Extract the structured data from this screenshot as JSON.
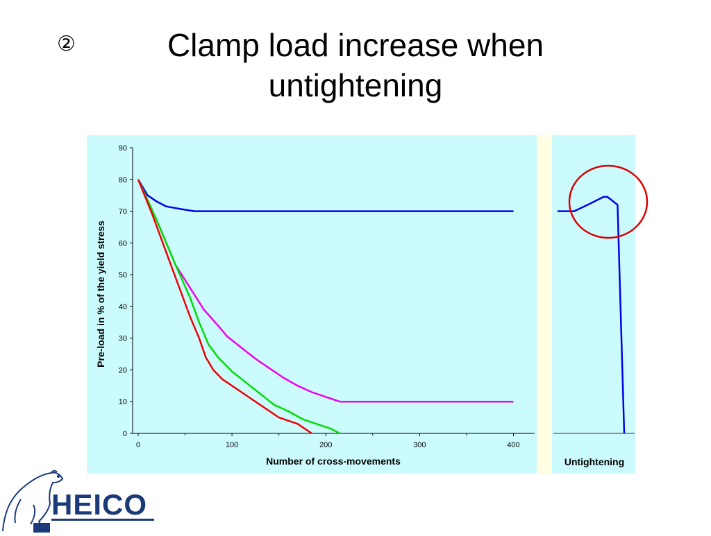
{
  "slide": {
    "number_glyph": "②",
    "title_line1": "Clamp load increase when",
    "title_line2": "untightening"
  },
  "logo": {
    "text": "HEICO",
    "icon": "polar-bear-icon",
    "color": "#1a3a7a"
  },
  "colors": {
    "background": "#ccfbfe",
    "separator": "#fffde2",
    "blue": "#0000ee",
    "magenta": "#ee00ee",
    "green": "#00dd00",
    "red": "#ee0000",
    "circle": "#dd0000"
  },
  "chart_data": [
    {
      "type": "line",
      "xlabel": "Number of cross-movements",
      "ylabel": "Pre-load in % of the yield stress",
      "xlim": [
        0,
        410
      ],
      "ylim": [
        0,
        90
      ],
      "xticks": [
        0,
        100,
        200,
        300,
        400
      ],
      "yticks": [
        0,
        10,
        20,
        30,
        40,
        50,
        60,
        70,
        80,
        90
      ],
      "grid": false,
      "series": [
        {
          "color": "blue",
          "points": [
            [
              0,
              80
            ],
            [
              10,
              75
            ],
            [
              20,
              73
            ],
            [
              30,
              71.5
            ],
            [
              45,
              70.7
            ],
            [
              60,
              70
            ],
            [
              150,
              70
            ],
            [
              250,
              70
            ],
            [
              400,
              70
            ]
          ]
        },
        {
          "color": "magenta",
          "points": [
            [
              0,
              80
            ],
            [
              20,
              67
            ],
            [
              40,
              53
            ],
            [
              55,
              46
            ],
            [
              70,
              39
            ],
            [
              85,
              34
            ],
            [
              95,
              30.5
            ],
            [
              110,
              27
            ],
            [
              125,
              23.5
            ],
            [
              140,
              20.5
            ],
            [
              155,
              17.5
            ],
            [
              170,
              15
            ],
            [
              185,
              13
            ],
            [
              200,
              11.5
            ],
            [
              215,
              10
            ],
            [
              300,
              10
            ],
            [
              400,
              10
            ]
          ]
        },
        {
          "color": "green",
          "points": [
            [
              0,
              80
            ],
            [
              20,
              67
            ],
            [
              40,
              53
            ],
            [
              55,
              43
            ],
            [
              65,
              35
            ],
            [
              75,
              28
            ],
            [
              85,
              24
            ],
            [
              100,
              19.5
            ],
            [
              115,
              16
            ],
            [
              130,
              12.5
            ],
            [
              145,
              9
            ],
            [
              160,
              7
            ],
            [
              175,
              4.5
            ],
            [
              190,
              3
            ],
            [
              205,
              1.5
            ],
            [
              215,
              0
            ]
          ]
        },
        {
          "color": "red",
          "points": [
            [
              0,
              80
            ],
            [
              15,
              69
            ],
            [
              30,
              57
            ],
            [
              45,
              45
            ],
            [
              55,
              37
            ],
            [
              65,
              30
            ],
            [
              72,
              24
            ],
            [
              80,
              20
            ],
            [
              90,
              17
            ],
            [
              105,
              14
            ],
            [
              120,
              11
            ],
            [
              135,
              8
            ],
            [
              150,
              5
            ],
            [
              170,
              3
            ],
            [
              185,
              0
            ]
          ]
        }
      ]
    },
    {
      "type": "line",
      "xlabel": "Untightening",
      "ylim": [
        0,
        90
      ],
      "series": [
        {
          "color": "blue",
          "points": [
            [
              0,
              70
            ],
            [
              20,
              70
            ],
            [
              40,
              72.5
            ],
            [
              55,
              74.5
            ],
            [
              60,
              74.5
            ],
            [
              72,
              72
            ],
            [
              80,
              0
            ]
          ]
        }
      ],
      "annotation": {
        "shape": "circle",
        "target": "clamp load peak"
      }
    }
  ]
}
